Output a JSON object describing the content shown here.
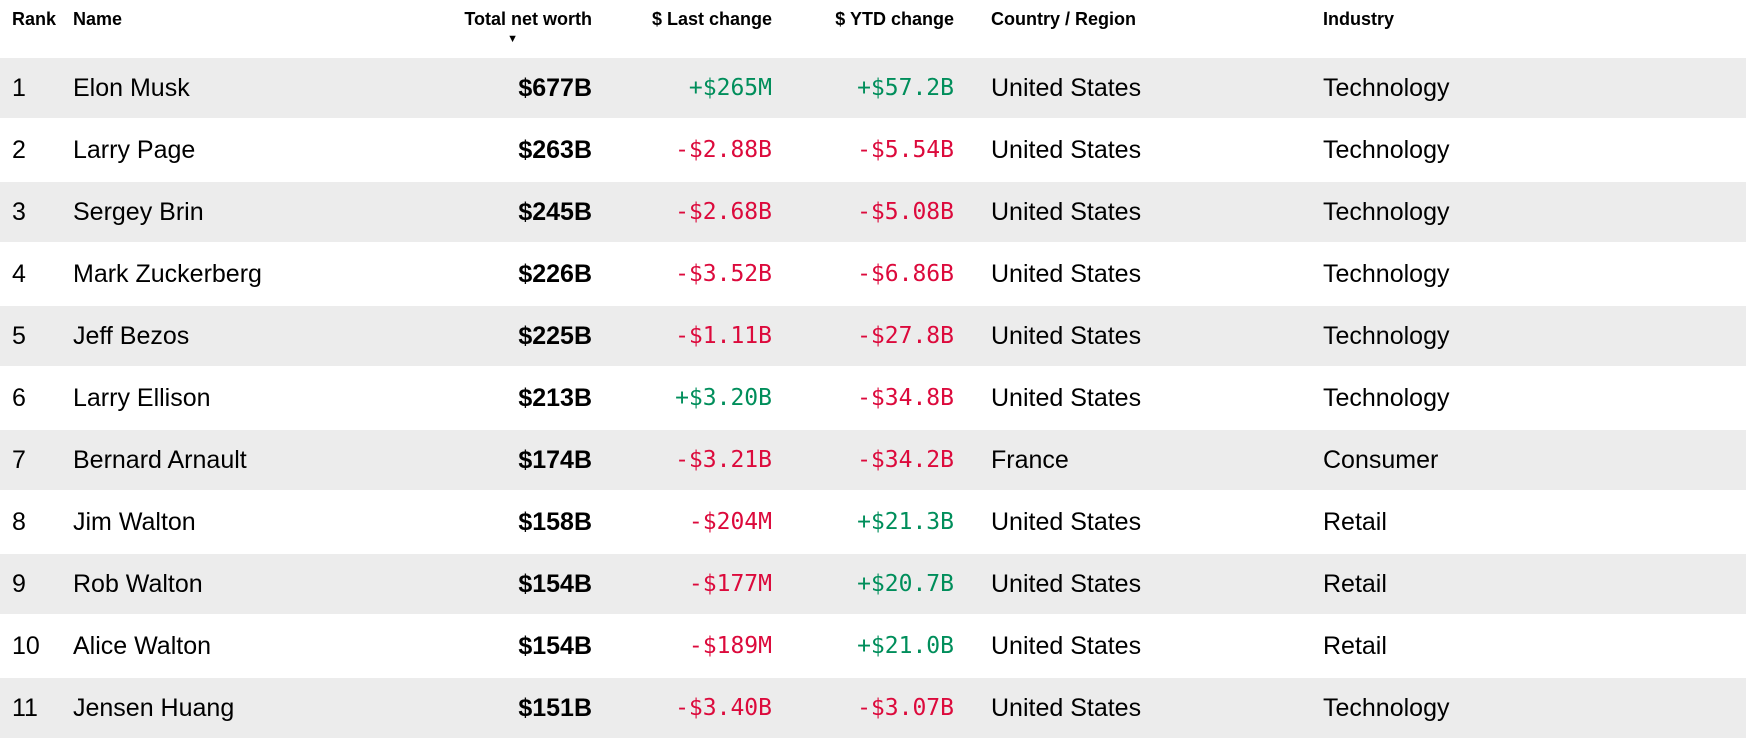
{
  "colors": {
    "positive_change": "#008e5b",
    "negative_change": "#dc0a3c",
    "row_stripe": "#ececec",
    "text": "#000000"
  },
  "table": {
    "sort_indicator": "▼",
    "sorted_column": "Total net worth",
    "sort_direction": "descending",
    "columns": [
      {
        "id": "rank",
        "label": "Rank"
      },
      {
        "id": "name",
        "label": "Name"
      },
      {
        "id": "networth",
        "label": "Total net worth"
      },
      {
        "id": "last",
        "label": "$ Last change"
      },
      {
        "id": "ytd",
        "label": "$ YTD change"
      },
      {
        "id": "country",
        "label": "Country / Region"
      },
      {
        "id": "industry",
        "label": "Industry"
      }
    ],
    "rows": [
      {
        "rank": "1",
        "name": "Elon Musk",
        "total_net_worth": "$677B",
        "last_change": "+$265M",
        "last_change_dir": "positive",
        "ytd_change": "+$57.2B",
        "ytd_change_dir": "positive",
        "country": "United States",
        "industry": "Technology"
      },
      {
        "rank": "2",
        "name": "Larry Page",
        "total_net_worth": "$263B",
        "last_change": "-$2.88B",
        "last_change_dir": "negative",
        "ytd_change": "-$5.54B",
        "ytd_change_dir": "negative",
        "country": "United States",
        "industry": "Technology"
      },
      {
        "rank": "3",
        "name": "Sergey Brin",
        "total_net_worth": "$245B",
        "last_change": "-$2.68B",
        "last_change_dir": "negative",
        "ytd_change": "-$5.08B",
        "ytd_change_dir": "negative",
        "country": "United States",
        "industry": "Technology"
      },
      {
        "rank": "4",
        "name": "Mark Zuckerberg",
        "total_net_worth": "$226B",
        "last_change": "-$3.52B",
        "last_change_dir": "negative",
        "ytd_change": "-$6.86B",
        "ytd_change_dir": "negative",
        "country": "United States",
        "industry": "Technology"
      },
      {
        "rank": "5",
        "name": "Jeff Bezos",
        "total_net_worth": "$225B",
        "last_change": "-$1.11B",
        "last_change_dir": "negative",
        "ytd_change": "-$27.8B",
        "ytd_change_dir": "negative",
        "country": "United States",
        "industry": "Technology"
      },
      {
        "rank": "6",
        "name": "Larry Ellison",
        "total_net_worth": "$213B",
        "last_change": "+$3.20B",
        "last_change_dir": "positive",
        "ytd_change": "-$34.8B",
        "ytd_change_dir": "negative",
        "country": "United States",
        "industry": "Technology"
      },
      {
        "rank": "7",
        "name": "Bernard Arnault",
        "total_net_worth": "$174B",
        "last_change": "-$3.21B",
        "last_change_dir": "negative",
        "ytd_change": "-$34.2B",
        "ytd_change_dir": "negative",
        "country": "France",
        "industry": "Consumer"
      },
      {
        "rank": "8",
        "name": "Jim Walton",
        "total_net_worth": "$158B",
        "last_change": "-$204M",
        "last_change_dir": "negative",
        "ytd_change": "+$21.3B",
        "ytd_change_dir": "positive",
        "country": "United States",
        "industry": "Retail"
      },
      {
        "rank": "9",
        "name": "Rob Walton",
        "total_net_worth": "$154B",
        "last_change": "-$177M",
        "last_change_dir": "negative",
        "ytd_change": "+$20.7B",
        "ytd_change_dir": "positive",
        "country": "United States",
        "industry": "Retail"
      },
      {
        "rank": "10",
        "name": "Alice Walton",
        "total_net_worth": "$154B",
        "last_change": "-$189M",
        "last_change_dir": "negative",
        "ytd_change": "+$21.0B",
        "ytd_change_dir": "positive",
        "country": "United States",
        "industry": "Retail"
      },
      {
        "rank": "11",
        "name": "Jensen Huang",
        "total_net_worth": "$151B",
        "last_change": "-$3.40B",
        "last_change_dir": "negative",
        "ytd_change": "-$3.07B",
        "ytd_change_dir": "negative",
        "country": "United States",
        "industry": "Technology"
      }
    ]
  }
}
